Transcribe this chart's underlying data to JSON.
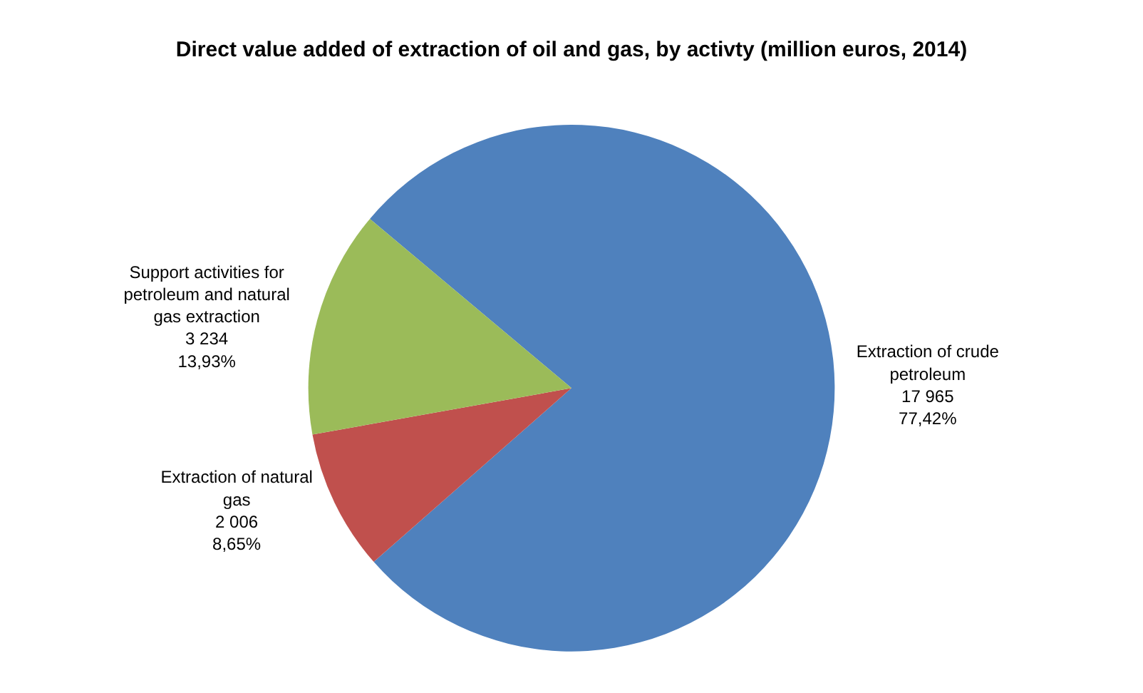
{
  "chart_data": {
    "type": "pie",
    "title": "Direct value added of extraction of oil and gas, by activty (million euros, 2014)",
    "categories": [
      "Extraction of crude petroleum",
      "Extraction of natural gas",
      "Support activities for petroleum and natural gas extraction"
    ],
    "values": [
      17965,
      2006,
      3234
    ],
    "colors": [
      "#4f81bd",
      "#c0504d",
      "#9bbb59"
    ],
    "value_labels": [
      "17 965\n77,42%",
      "2 006\n8,65%",
      "3 234\n13,93%"
    ],
    "legend": false
  }
}
